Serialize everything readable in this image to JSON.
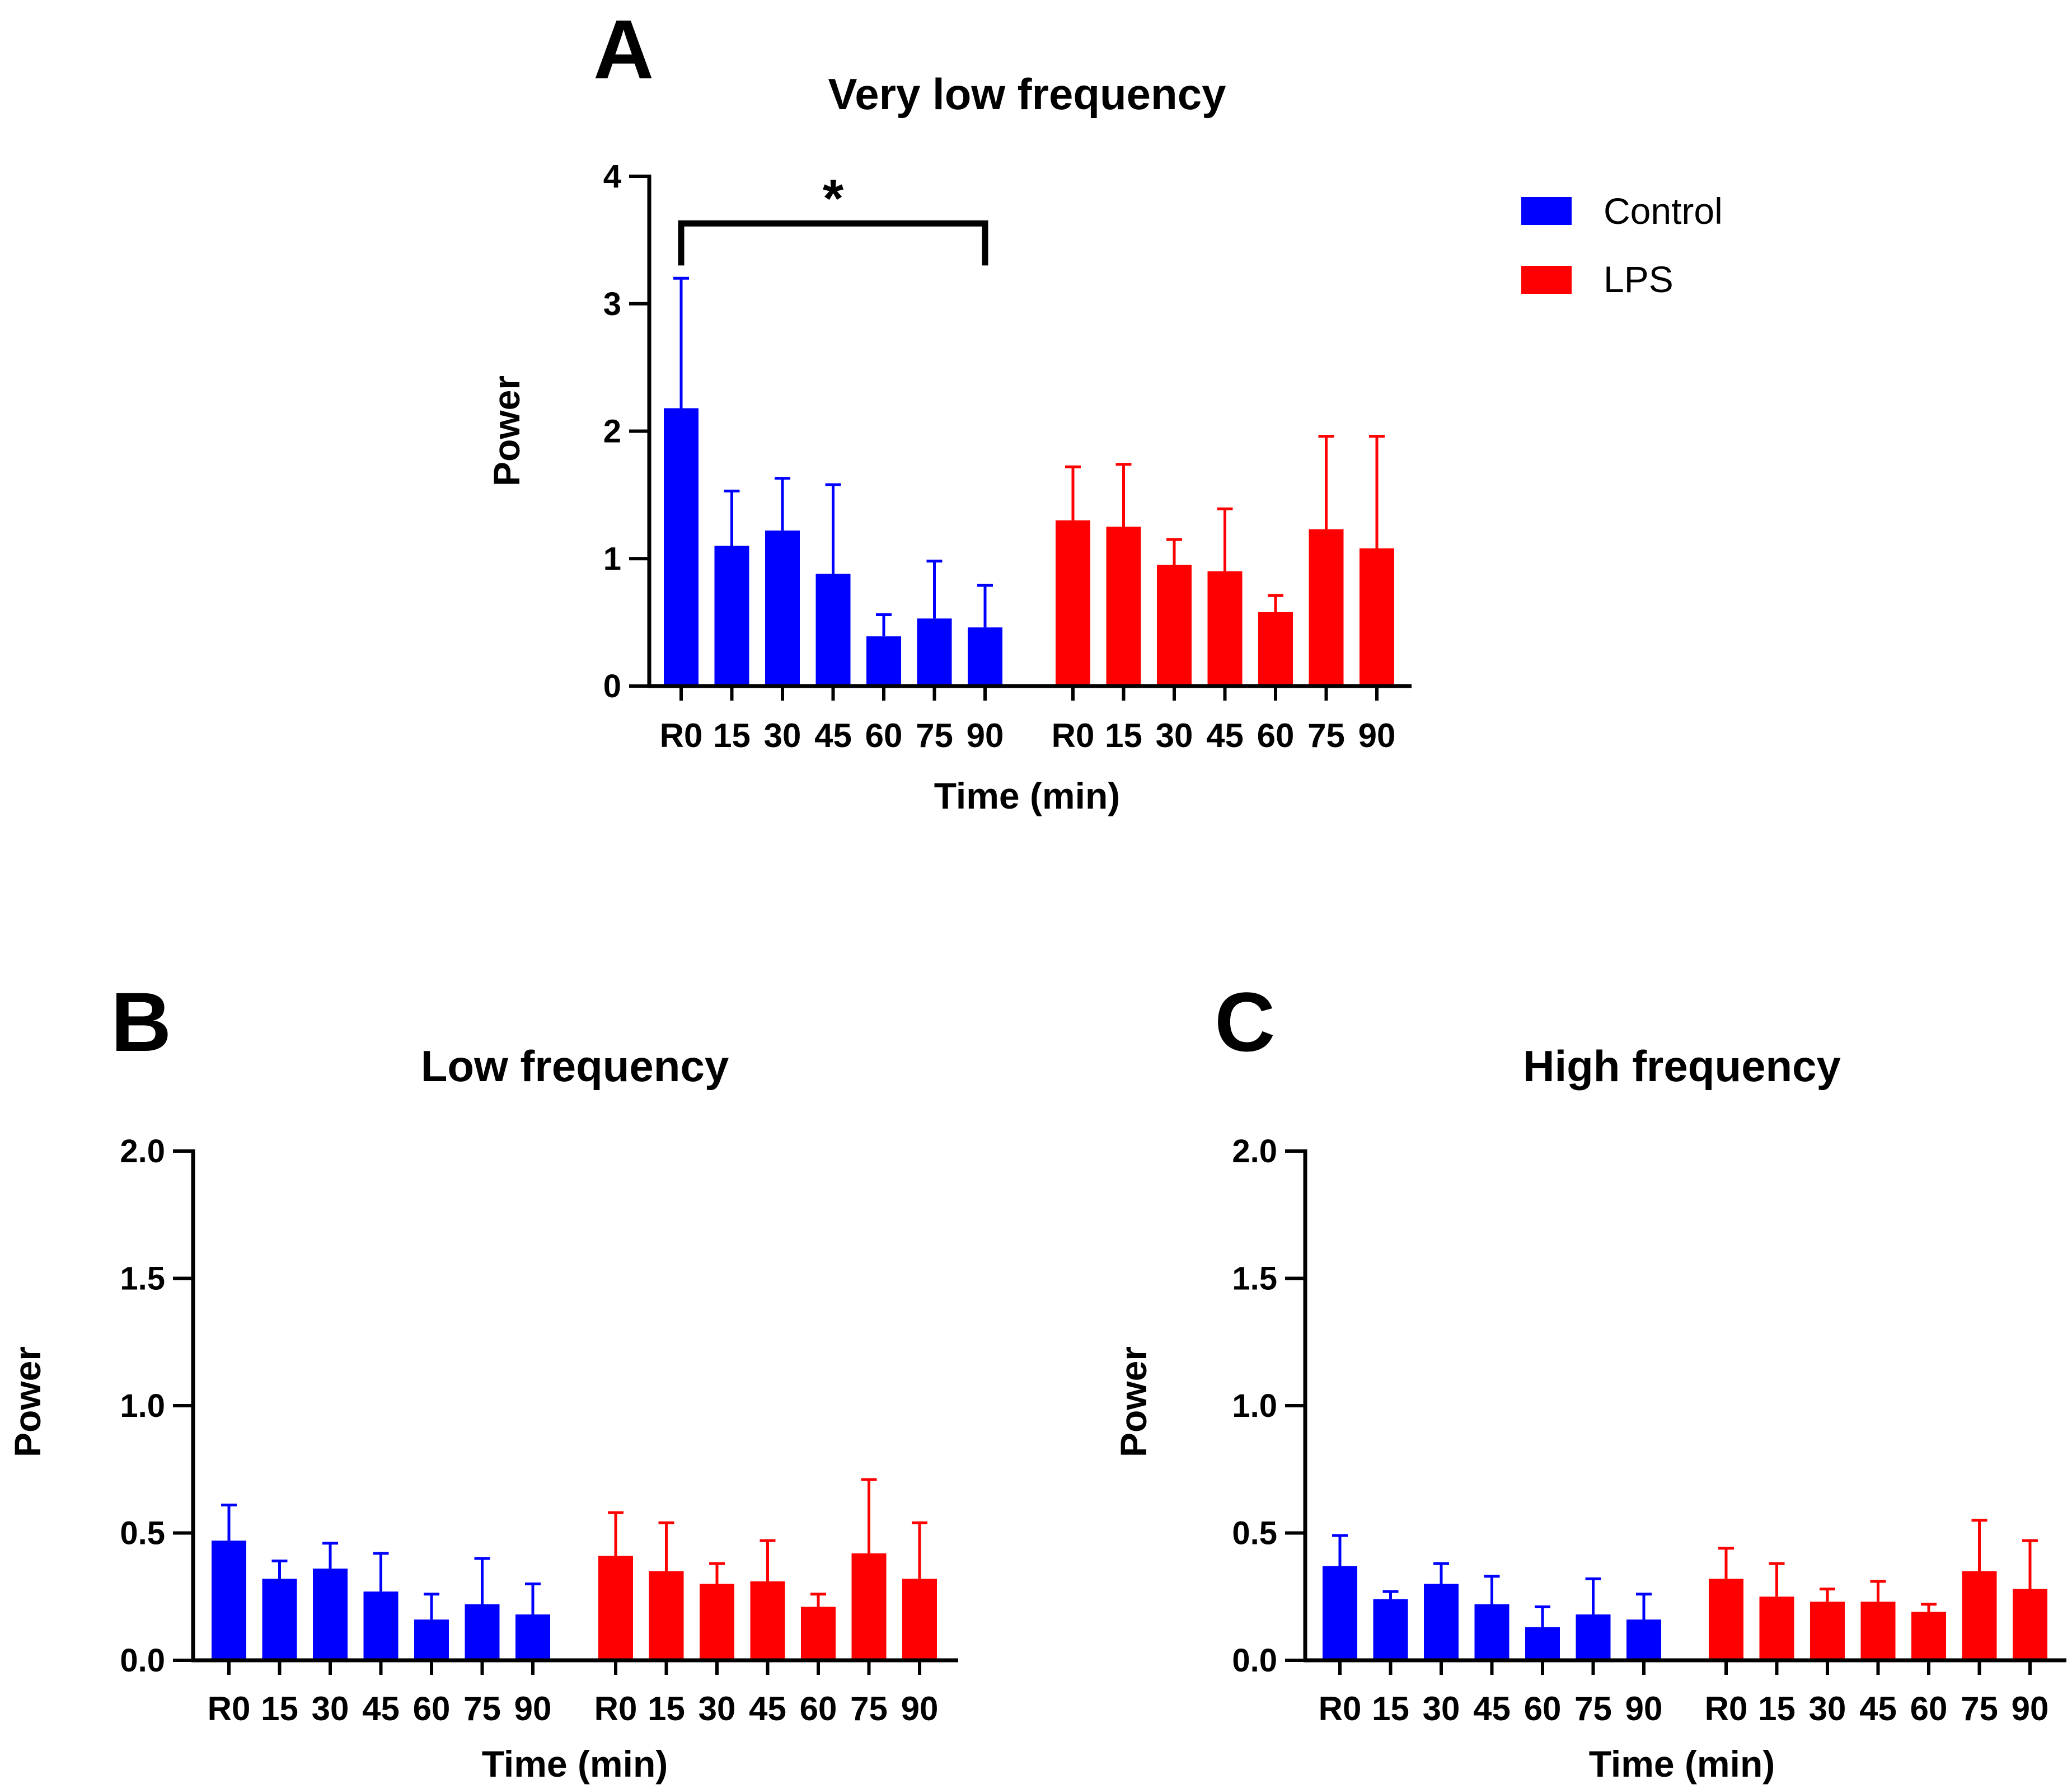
{
  "chart_data": [
    {
      "type": "bar",
      "panel": "A",
      "title": "Very low frequency",
      "xlabel": "Time (min)",
      "ylabel": "Power",
      "ylim": [
        0,
        4
      ],
      "yticks": [
        "0",
        "1",
        "2",
        "3",
        "4"
      ],
      "categories": [
        "R0",
        "15",
        "30",
        "45",
        "60",
        "75",
        "90"
      ],
      "series": [
        {
          "name": "Control",
          "color": "#0000ff",
          "values": [
            2.18,
            1.1,
            1.22,
            0.88,
            0.39,
            0.53,
            0.46
          ],
          "errors": [
            1.02,
            0.43,
            0.41,
            0.7,
            0.17,
            0.45,
            0.33
          ]
        },
        {
          "name": "LPS",
          "color": "#ff0000",
          "values": [
            1.3,
            1.25,
            0.95,
            0.9,
            0.58,
            1.23,
            1.08
          ],
          "errors": [
            0.42,
            0.49,
            0.2,
            0.49,
            0.13,
            0.73,
            0.88
          ]
        }
      ],
      "annotation": {
        "text": "*",
        "from": "R0",
        "to": "90",
        "series": "Control"
      }
    },
    {
      "type": "bar",
      "panel": "B",
      "title": "Low frequency",
      "xlabel": "Time (min)",
      "ylabel": "Power",
      "ylim": [
        0,
        2
      ],
      "yticks": [
        "0.0",
        "0.5",
        "1.0",
        "1.5",
        "2.0"
      ],
      "categories": [
        "R0",
        "15",
        "30",
        "45",
        "60",
        "75",
        "90"
      ],
      "series": [
        {
          "name": "Control",
          "color": "#0000ff",
          "values": [
            0.47,
            0.32,
            0.36,
            0.27,
            0.16,
            0.22,
            0.18
          ],
          "errors": [
            0.14,
            0.07,
            0.1,
            0.15,
            0.1,
            0.18,
            0.12
          ]
        },
        {
          "name": "LPS",
          "color": "#ff0000",
          "values": [
            0.41,
            0.35,
            0.3,
            0.31,
            0.21,
            0.42,
            0.32
          ],
          "errors": [
            0.17,
            0.19,
            0.08,
            0.16,
            0.05,
            0.29,
            0.22
          ]
        }
      ]
    },
    {
      "type": "bar",
      "panel": "C",
      "title": "High frequency",
      "xlabel": "Time (min)",
      "ylabel": "Power",
      "ylim": [
        0,
        2
      ],
      "yticks": [
        "0.0",
        "0.5",
        "1.0",
        "1.5",
        "2.0"
      ],
      "categories": [
        "R0",
        "15",
        "30",
        "45",
        "60",
        "75",
        "90"
      ],
      "series": [
        {
          "name": "Control",
          "color": "#0000ff",
          "values": [
            0.37,
            0.24,
            0.3,
            0.22,
            0.13,
            0.18,
            0.16
          ],
          "errors": [
            0.12,
            0.03,
            0.08,
            0.11,
            0.08,
            0.14,
            0.1
          ]
        },
        {
          "name": "LPS",
          "color": "#ff0000",
          "values": [
            0.32,
            0.25,
            0.23,
            0.23,
            0.19,
            0.35,
            0.28
          ],
          "errors": [
            0.12,
            0.13,
            0.05,
            0.08,
            0.03,
            0.2,
            0.19
          ]
        }
      ]
    }
  ],
  "legend": [
    {
      "label": "Control",
      "color": "#0000ff"
    },
    {
      "label": "LPS",
      "color": "#ff0000"
    }
  ]
}
